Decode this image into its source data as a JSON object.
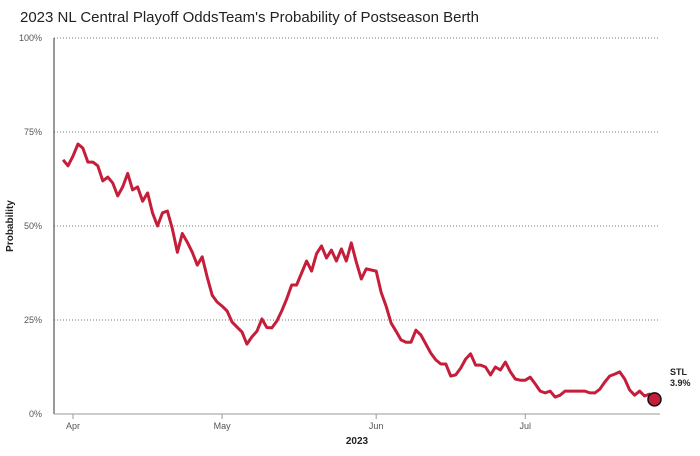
{
  "chart_data": {
    "type": "line",
    "title": "2023 NL Central Playoff Odds",
    "subtitle": "Team's Probability of Postseason Berth",
    "xlabel": "2023",
    "ylabel": "Probability",
    "ylim": [
      0,
      100
    ],
    "yticks": [
      "0%",
      "25%",
      "50%",
      "75%",
      "100%"
    ],
    "xticks": [
      {
        "label": "Apr",
        "date": "2023-04-01"
      },
      {
        "label": "May",
        "date": "2023-05-01"
      },
      {
        "label": "Jun",
        "date": "2023-06-01"
      },
      {
        "label": "Jul",
        "date": "2023-07-01"
      }
    ],
    "grid": true,
    "line_color": "#c41e3a",
    "series": [
      {
        "name": "STL",
        "end_label": "3.9%",
        "x": [
          "2023-03-30",
          "2023-03-31",
          "2023-04-01",
          "2023-04-02",
          "2023-04-03",
          "2023-04-04",
          "2023-04-05",
          "2023-04-06",
          "2023-04-07",
          "2023-04-08",
          "2023-04-09",
          "2023-04-10",
          "2023-04-11",
          "2023-04-12",
          "2023-04-13",
          "2023-04-14",
          "2023-04-15",
          "2023-04-16",
          "2023-04-17",
          "2023-04-18",
          "2023-04-19",
          "2023-04-20",
          "2023-04-21",
          "2023-04-22",
          "2023-04-23",
          "2023-04-24",
          "2023-04-25",
          "2023-04-26",
          "2023-04-27",
          "2023-04-28",
          "2023-04-29",
          "2023-04-30",
          "2023-05-01",
          "2023-05-02",
          "2023-05-03",
          "2023-05-04",
          "2023-05-05",
          "2023-05-06",
          "2023-05-07",
          "2023-05-08",
          "2023-05-09",
          "2023-05-10",
          "2023-05-11",
          "2023-05-12",
          "2023-05-13",
          "2023-05-14",
          "2023-05-15",
          "2023-05-16",
          "2023-05-17",
          "2023-05-18",
          "2023-05-19",
          "2023-05-20",
          "2023-05-21",
          "2023-05-22",
          "2023-05-23",
          "2023-05-24",
          "2023-05-25",
          "2023-05-26",
          "2023-05-27",
          "2023-05-28",
          "2023-05-29",
          "2023-05-30",
          "2023-05-31",
          "2023-06-01",
          "2023-06-02",
          "2023-06-03",
          "2023-06-04",
          "2023-06-05",
          "2023-06-06",
          "2023-06-07",
          "2023-06-08",
          "2023-06-09",
          "2023-06-10",
          "2023-06-11",
          "2023-06-12",
          "2023-06-13",
          "2023-06-14",
          "2023-06-15",
          "2023-06-16",
          "2023-06-17",
          "2023-06-18",
          "2023-06-19",
          "2023-06-20",
          "2023-06-21",
          "2023-06-22",
          "2023-06-23",
          "2023-06-24",
          "2023-06-25",
          "2023-06-26",
          "2023-06-27",
          "2023-06-28",
          "2023-06-29",
          "2023-06-30",
          "2023-07-01",
          "2023-07-02",
          "2023-07-03",
          "2023-07-04",
          "2023-07-05",
          "2023-07-06",
          "2023-07-07",
          "2023-07-08",
          "2023-07-09",
          "2023-07-10",
          "2023-07-11",
          "2023-07-12",
          "2023-07-13",
          "2023-07-14",
          "2023-07-15",
          "2023-07-16",
          "2023-07-17",
          "2023-07-18",
          "2023-07-19",
          "2023-07-20",
          "2023-07-21",
          "2023-07-22",
          "2023-07-23",
          "2023-07-24",
          "2023-07-25",
          "2023-07-26",
          "2023-07-27"
        ],
        "y": [
          67.6,
          66,
          68.6,
          71.8,
          70.7,
          67,
          67,
          66,
          62,
          63,
          61.4,
          58,
          60.4,
          64,
          59.6,
          60.4,
          56.6,
          58.8,
          53.5,
          50,
          53.5,
          54,
          49.2,
          43,
          48,
          45.7,
          43,
          39.6,
          41.8,
          36.4,
          31.6,
          29.8,
          28.7,
          27.4,
          24.5,
          23.1,
          21.8,
          18.6,
          20.5,
          22,
          25.3,
          23,
          22.9,
          24.7,
          27.4,
          30.6,
          34.3,
          34.3,
          37.5,
          40.7,
          38,
          42.6,
          44.7,
          41.5,
          43.6,
          40.7,
          43.9,
          40.7,
          45.5,
          40.4,
          35.9,
          38.6,
          38.3,
          38,
          32.4,
          28.7,
          24.2,
          22,
          19.7,
          19.1,
          19.1,
          22.3,
          21,
          18.6,
          16.2,
          14.4,
          13.3,
          13.3,
          10.1,
          10.4,
          12.2,
          14.6,
          16,
          13,
          13,
          12.5,
          10.4,
          12.5,
          11.7,
          13.8,
          11.2,
          9.3,
          9,
          9,
          9.8,
          8,
          6.1,
          5.6,
          6.1,
          4.5,
          5,
          6.1,
          6.1,
          6.1,
          6.1,
          6.1,
          5.6,
          5.6,
          6.6,
          8.5,
          10.1,
          10.6,
          11.2,
          9.3,
          6.4,
          5,
          6.1,
          4.8,
          5.3,
          3.9
        ]
      }
    ]
  }
}
